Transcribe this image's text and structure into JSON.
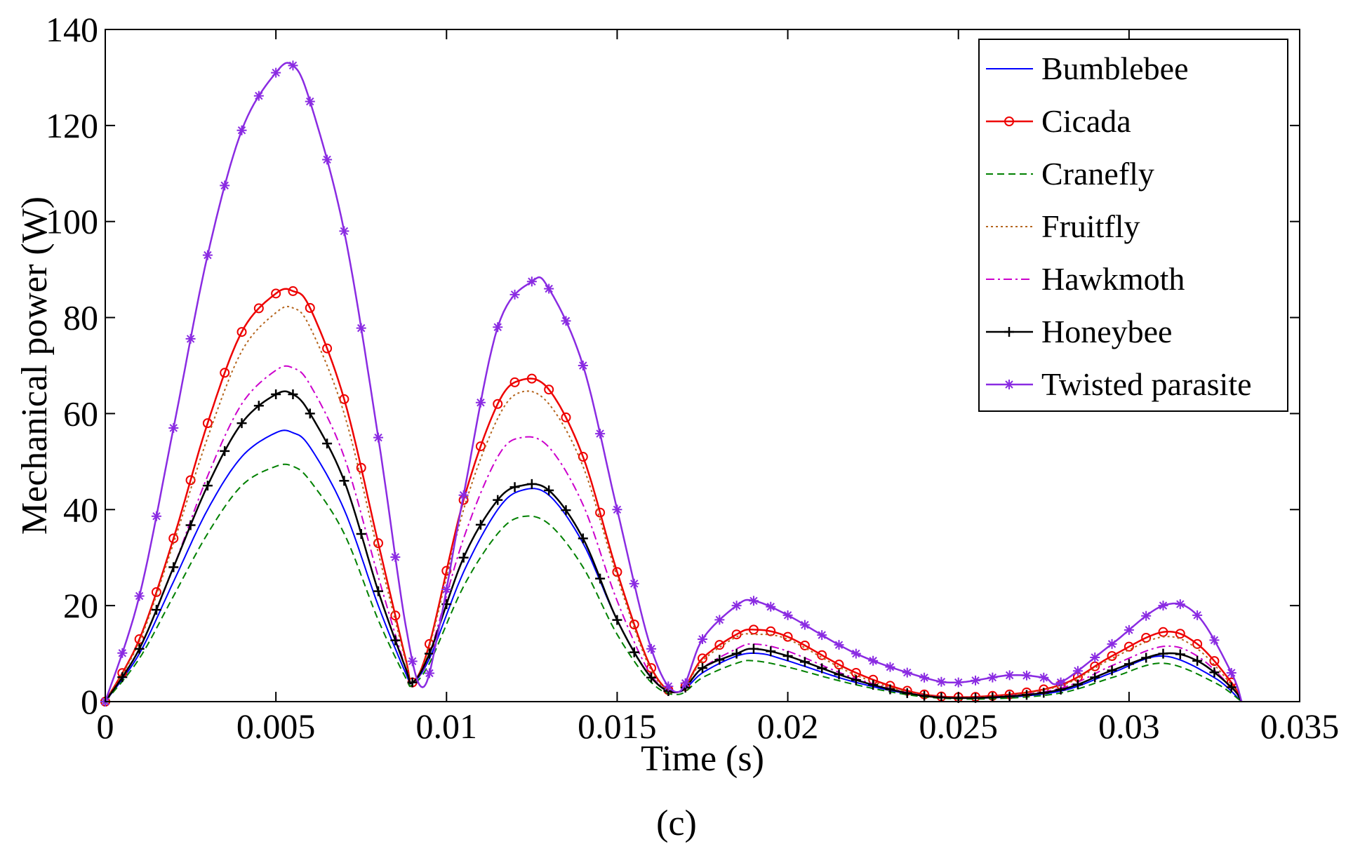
{
  "chart_data": {
    "type": "line",
    "title": "",
    "xlabel": "Time (s)",
    "ylabel": "Mechanical power (W)",
    "caption": "(c)",
    "xlim": [
      0,
      0.035
    ],
    "ylim": [
      0,
      140
    ],
    "xticks": [
      0,
      0.005,
      0.01,
      0.015,
      0.02,
      0.025,
      0.03,
      0.035
    ],
    "xtick_labels": [
      "0",
      "0.005",
      "0.01",
      "0.015",
      "0.02",
      "0.025",
      "0.03",
      "0.035"
    ],
    "yticks": [
      0,
      20,
      40,
      60,
      80,
      100,
      120,
      140
    ],
    "ytick_labels": [
      "0",
      "20",
      "40",
      "60",
      "80",
      "100",
      "120",
      "140"
    ],
    "legend_position": "top-right",
    "series": [
      {
        "name": "Bumblebee",
        "color": "#0000ff",
        "style": "solid",
        "marker": "none",
        "points": [
          [
            0,
            0
          ],
          [
            0.001,
            10
          ],
          [
            0.002,
            25
          ],
          [
            0.003,
            40
          ],
          [
            0.004,
            51
          ],
          [
            0.005,
            56
          ],
          [
            0.0055,
            56
          ],
          [
            0.006,
            53
          ],
          [
            0.007,
            40
          ],
          [
            0.008,
            20
          ],
          [
            0.0088,
            6
          ],
          [
            0.009,
            4
          ],
          [
            0.0095,
            9
          ],
          [
            0.0105,
            27
          ],
          [
            0.0115,
            40
          ],
          [
            0.0122,
            44
          ],
          [
            0.013,
            43
          ],
          [
            0.014,
            33
          ],
          [
            0.015,
            17
          ],
          [
            0.016,
            5
          ],
          [
            0.0168,
            2
          ],
          [
            0.0175,
            6
          ],
          [
            0.0185,
            9.5
          ],
          [
            0.0192,
            10
          ],
          [
            0.02,
            8.5
          ],
          [
            0.022,
            4
          ],
          [
            0.024,
            1.2
          ],
          [
            0.026,
            0.8
          ],
          [
            0.028,
            2.2
          ],
          [
            0.0295,
            6
          ],
          [
            0.031,
            9.5
          ],
          [
            0.0325,
            5
          ],
          [
            0.0333,
            0
          ]
        ]
      },
      {
        "name": "Cicada",
        "color": "#ee0000",
        "style": "solid",
        "marker": "circle",
        "points": [
          [
            0,
            0
          ],
          [
            0.001,
            13
          ],
          [
            0.002,
            34
          ],
          [
            0.003,
            58
          ],
          [
            0.004,
            77
          ],
          [
            0.005,
            85
          ],
          [
            0.0055,
            85.5
          ],
          [
            0.006,
            82
          ],
          [
            0.007,
            63
          ],
          [
            0.008,
            33
          ],
          [
            0.0088,
            9
          ],
          [
            0.009,
            4
          ],
          [
            0.0095,
            12
          ],
          [
            0.0105,
            42
          ],
          [
            0.0115,
            62
          ],
          [
            0.0122,
            67
          ],
          [
            0.013,
            65
          ],
          [
            0.014,
            51
          ],
          [
            0.015,
            27
          ],
          [
            0.016,
            7
          ],
          [
            0.0168,
            2
          ],
          [
            0.0175,
            9
          ],
          [
            0.0185,
            14
          ],
          [
            0.019,
            15
          ],
          [
            0.02,
            13.5
          ],
          [
            0.022,
            6
          ],
          [
            0.024,
            1.5
          ],
          [
            0.026,
            1.2
          ],
          [
            0.028,
            3.5
          ],
          [
            0.0295,
            9.5
          ],
          [
            0.031,
            14.5
          ],
          [
            0.032,
            12
          ],
          [
            0.033,
            4
          ],
          [
            0.0333,
            0
          ]
        ]
      },
      {
        "name": "Cranefly",
        "color": "#008000",
        "style": "dashed",
        "marker": "none",
        "points": [
          [
            0,
            0
          ],
          [
            0.001,
            9
          ],
          [
            0.002,
            22
          ],
          [
            0.003,
            35
          ],
          [
            0.004,
            45
          ],
          [
            0.005,
            49
          ],
          [
            0.0055,
            49
          ],
          [
            0.006,
            46
          ],
          [
            0.007,
            35
          ],
          [
            0.008,
            17
          ],
          [
            0.0088,
            5
          ],
          [
            0.009,
            3.5
          ],
          [
            0.0095,
            8
          ],
          [
            0.0105,
            24
          ],
          [
            0.0115,
            35
          ],
          [
            0.0122,
            38.5
          ],
          [
            0.013,
            37
          ],
          [
            0.014,
            28
          ],
          [
            0.015,
            14
          ],
          [
            0.016,
            4
          ],
          [
            0.0168,
            1.5
          ],
          [
            0.0175,
            5
          ],
          [
            0.0185,
            8
          ],
          [
            0.019,
            8.5
          ],
          [
            0.02,
            7.2
          ],
          [
            0.022,
            3.5
          ],
          [
            0.024,
            1
          ],
          [
            0.026,
            0.6
          ],
          [
            0.028,
            1.8
          ],
          [
            0.0295,
            5
          ],
          [
            0.031,
            8
          ],
          [
            0.0325,
            4
          ],
          [
            0.0333,
            0
          ]
        ]
      },
      {
        "name": "Fruitfly",
        "color": "#b5651d",
        "style": "dotted",
        "marker": "none",
        "points": [
          [
            0,
            0
          ],
          [
            0.001,
            12.5
          ],
          [
            0.002,
            33
          ],
          [
            0.003,
            55
          ],
          [
            0.004,
            73
          ],
          [
            0.005,
            81
          ],
          [
            0.0055,
            82
          ],
          [
            0.006,
            78
          ],
          [
            0.007,
            60
          ],
          [
            0.008,
            31
          ],
          [
            0.0088,
            8.5
          ],
          [
            0.009,
            4
          ],
          [
            0.0095,
            11.5
          ],
          [
            0.0105,
            40
          ],
          [
            0.0115,
            59
          ],
          [
            0.0122,
            64.5
          ],
          [
            0.013,
            62
          ],
          [
            0.014,
            49
          ],
          [
            0.015,
            26
          ],
          [
            0.016,
            6.5
          ],
          [
            0.0168,
            2
          ],
          [
            0.0175,
            8.5
          ],
          [
            0.0185,
            13.5
          ],
          [
            0.019,
            14
          ],
          [
            0.02,
            13
          ],
          [
            0.022,
            5.5
          ],
          [
            0.024,
            1.4
          ],
          [
            0.026,
            1.1
          ],
          [
            0.028,
            3.3
          ],
          [
            0.0295,
            9
          ],
          [
            0.031,
            13.5
          ],
          [
            0.032,
            11
          ],
          [
            0.033,
            3.5
          ],
          [
            0.0333,
            0
          ]
        ]
      },
      {
        "name": "Hawkmoth",
        "color": "#cc00cc",
        "style": "dashdot",
        "marker": "none",
        "points": [
          [
            0,
            0
          ],
          [
            0.001,
            11
          ],
          [
            0.002,
            28
          ],
          [
            0.003,
            47
          ],
          [
            0.004,
            62
          ],
          [
            0.005,
            69
          ],
          [
            0.0055,
            69.5
          ],
          [
            0.006,
            66
          ],
          [
            0.007,
            51
          ],
          [
            0.008,
            26
          ],
          [
            0.0088,
            7
          ],
          [
            0.009,
            4
          ],
          [
            0.0095,
            10
          ],
          [
            0.0105,
            34
          ],
          [
            0.0115,
            51
          ],
          [
            0.0122,
            55
          ],
          [
            0.013,
            53
          ],
          [
            0.014,
            41
          ],
          [
            0.015,
            21
          ],
          [
            0.016,
            5.5
          ],
          [
            0.0168,
            2
          ],
          [
            0.0175,
            7
          ],
          [
            0.0185,
            11
          ],
          [
            0.019,
            12
          ],
          [
            0.02,
            10.5
          ],
          [
            0.022,
            4.8
          ],
          [
            0.024,
            1.3
          ],
          [
            0.026,
            1
          ],
          [
            0.028,
            2.8
          ],
          [
            0.0295,
            7.5
          ],
          [
            0.031,
            11.5
          ],
          [
            0.032,
            9.5
          ],
          [
            0.033,
            3
          ],
          [
            0.0333,
            0
          ]
        ]
      },
      {
        "name": "Honeybee",
        "color": "#000000",
        "style": "solid",
        "marker": "plus",
        "points": [
          [
            0,
            0
          ],
          [
            0.001,
            11
          ],
          [
            0.002,
            28
          ],
          [
            0.003,
            45
          ],
          [
            0.004,
            58
          ],
          [
            0.005,
            64
          ],
          [
            0.0055,
            64
          ],
          [
            0.006,
            60
          ],
          [
            0.007,
            46
          ],
          [
            0.008,
            23
          ],
          [
            0.0088,
            7
          ],
          [
            0.009,
            4
          ],
          [
            0.0095,
            10
          ],
          [
            0.0105,
            30
          ],
          [
            0.0115,
            42
          ],
          [
            0.0122,
            45
          ],
          [
            0.013,
            44
          ],
          [
            0.014,
            34
          ],
          [
            0.015,
            17
          ],
          [
            0.016,
            5
          ],
          [
            0.0168,
            2
          ],
          [
            0.0175,
            7
          ],
          [
            0.0185,
            10
          ],
          [
            0.019,
            11
          ],
          [
            0.02,
            9.5
          ],
          [
            0.022,
            4.5
          ],
          [
            0.024,
            1.2
          ],
          [
            0.026,
            0.9
          ],
          [
            0.028,
            2.5
          ],
          [
            0.0295,
            6.5
          ],
          [
            0.031,
            10
          ],
          [
            0.032,
            8.5
          ],
          [
            0.033,
            3
          ],
          [
            0.0333,
            0
          ]
        ]
      },
      {
        "name": "Twisted parasite",
        "color": "#8a2be2",
        "style": "solid",
        "marker": "star",
        "points": [
          [
            0,
            0
          ],
          [
            0.001,
            22
          ],
          [
            0.002,
            57
          ],
          [
            0.003,
            93
          ],
          [
            0.004,
            119
          ],
          [
            0.005,
            131
          ],
          [
            0.0055,
            132.5
          ],
          [
            0.006,
            125
          ],
          [
            0.007,
            98
          ],
          [
            0.008,
            55
          ],
          [
            0.0088,
            16
          ],
          [
            0.0093,
            3
          ],
          [
            0.0098,
            16
          ],
          [
            0.0105,
            43
          ],
          [
            0.0115,
            78
          ],
          [
            0.0125,
            87.5
          ],
          [
            0.013,
            86
          ],
          [
            0.014,
            70
          ],
          [
            0.015,
            40
          ],
          [
            0.016,
            11
          ],
          [
            0.0168,
            2
          ],
          [
            0.0175,
            13
          ],
          [
            0.0185,
            20
          ],
          [
            0.019,
            21
          ],
          [
            0.02,
            18
          ],
          [
            0.022,
            10
          ],
          [
            0.024,
            5
          ],
          [
            0.025,
            4
          ],
          [
            0.0265,
            5.5
          ],
          [
            0.0275,
            5
          ],
          [
            0.028,
            4
          ],
          [
            0.0295,
            12
          ],
          [
            0.031,
            20
          ],
          [
            0.032,
            18
          ],
          [
            0.033,
            6
          ],
          [
            0.0333,
            0
          ]
        ]
      }
    ]
  }
}
